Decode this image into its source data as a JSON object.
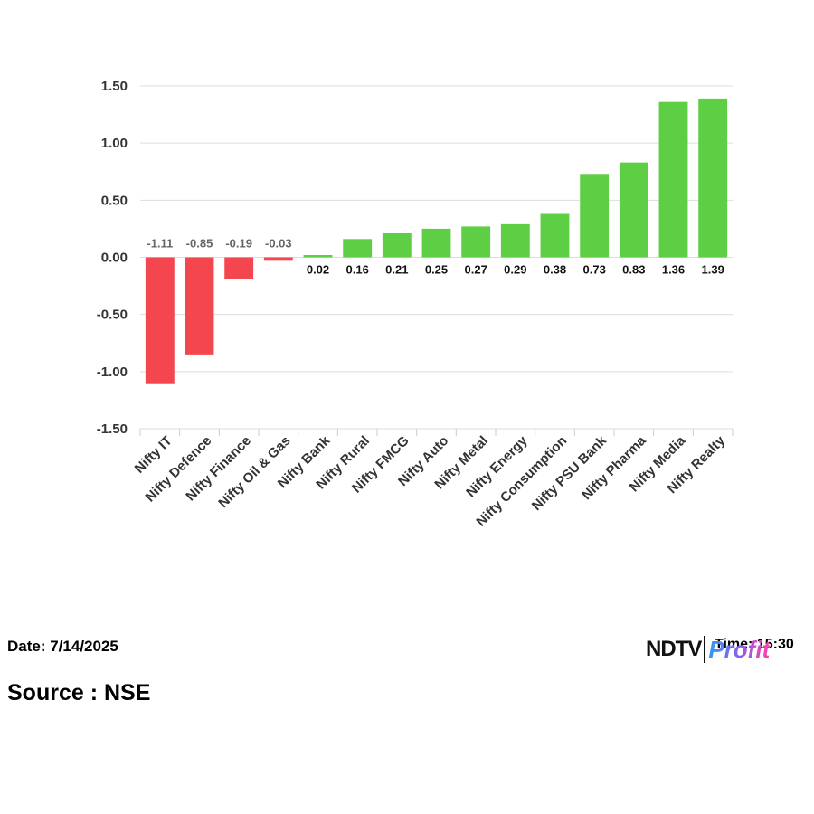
{
  "chart_data": {
    "type": "bar",
    "categories": [
      "Nifty IT",
      "Nifty Defence",
      "Nifty Finance",
      "Nifty Oil & Gas",
      "Nifty Bank",
      "Nifty Rural",
      "Nifty FMCG",
      "Nifty Auto",
      "Nifty Metal",
      "Nifty Energy",
      "Nifty Consumption",
      "Nifty PSU Bank",
      "Nifty Pharma",
      "Nifty Media",
      "Nifty Realty"
    ],
    "values": [
      -1.11,
      -0.85,
      -0.19,
      -0.03,
      0.02,
      0.16,
      0.21,
      0.25,
      0.27,
      0.29,
      0.38,
      0.73,
      0.83,
      1.36,
      1.39
    ],
    "value_labels": [
      "-1.11",
      "-0.85",
      "-0.19",
      "-0.03",
      "0.02",
      "0.16",
      "0.21",
      "0.25",
      "0.27",
      "0.29",
      "0.38",
      "0.73",
      "0.83",
      "1.36",
      "1.39"
    ],
    "yticks": [
      1.5,
      1.0,
      0.5,
      0.0,
      -0.5,
      -1.0,
      -1.5
    ],
    "ytick_labels": [
      "1.50",
      "1.00",
      "0.50",
      "0.00",
      "-0.50",
      "-1.00",
      "-1.50"
    ],
    "ylim": [
      -1.5,
      1.5
    ],
    "grid": true,
    "legend": "none",
    "colors": {
      "positive": "#5ecf45",
      "negative": "#f4464f",
      "positive_label": "#111111",
      "negative_label": "#666666",
      "grid": "#dddddd"
    }
  },
  "footer": {
    "date": "Date: 7/14/2025",
    "source": "Source : NSE",
    "time": "Time: 15:30",
    "logo_left": "NDTV",
    "logo_right": "Profit"
  }
}
